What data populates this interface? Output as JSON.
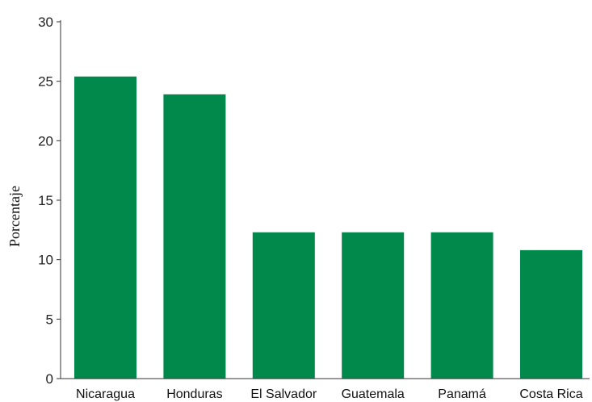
{
  "chart_data": {
    "type": "bar",
    "categories": [
      "Nicaragua",
      "Honduras",
      "El Salvador",
      "Guatemala",
      "Panamá",
      "Costa Rica"
    ],
    "values": [
      25.4,
      23.9,
      12.3,
      12.3,
      12.3,
      10.8
    ],
    "title": "",
    "xlabel": "",
    "ylabel": "Porcentaje",
    "ylim": [
      0,
      30
    ],
    "yticks": [
      0,
      5,
      10,
      15,
      20,
      25,
      30
    ],
    "grid": false,
    "bar_color": "#00894a"
  }
}
